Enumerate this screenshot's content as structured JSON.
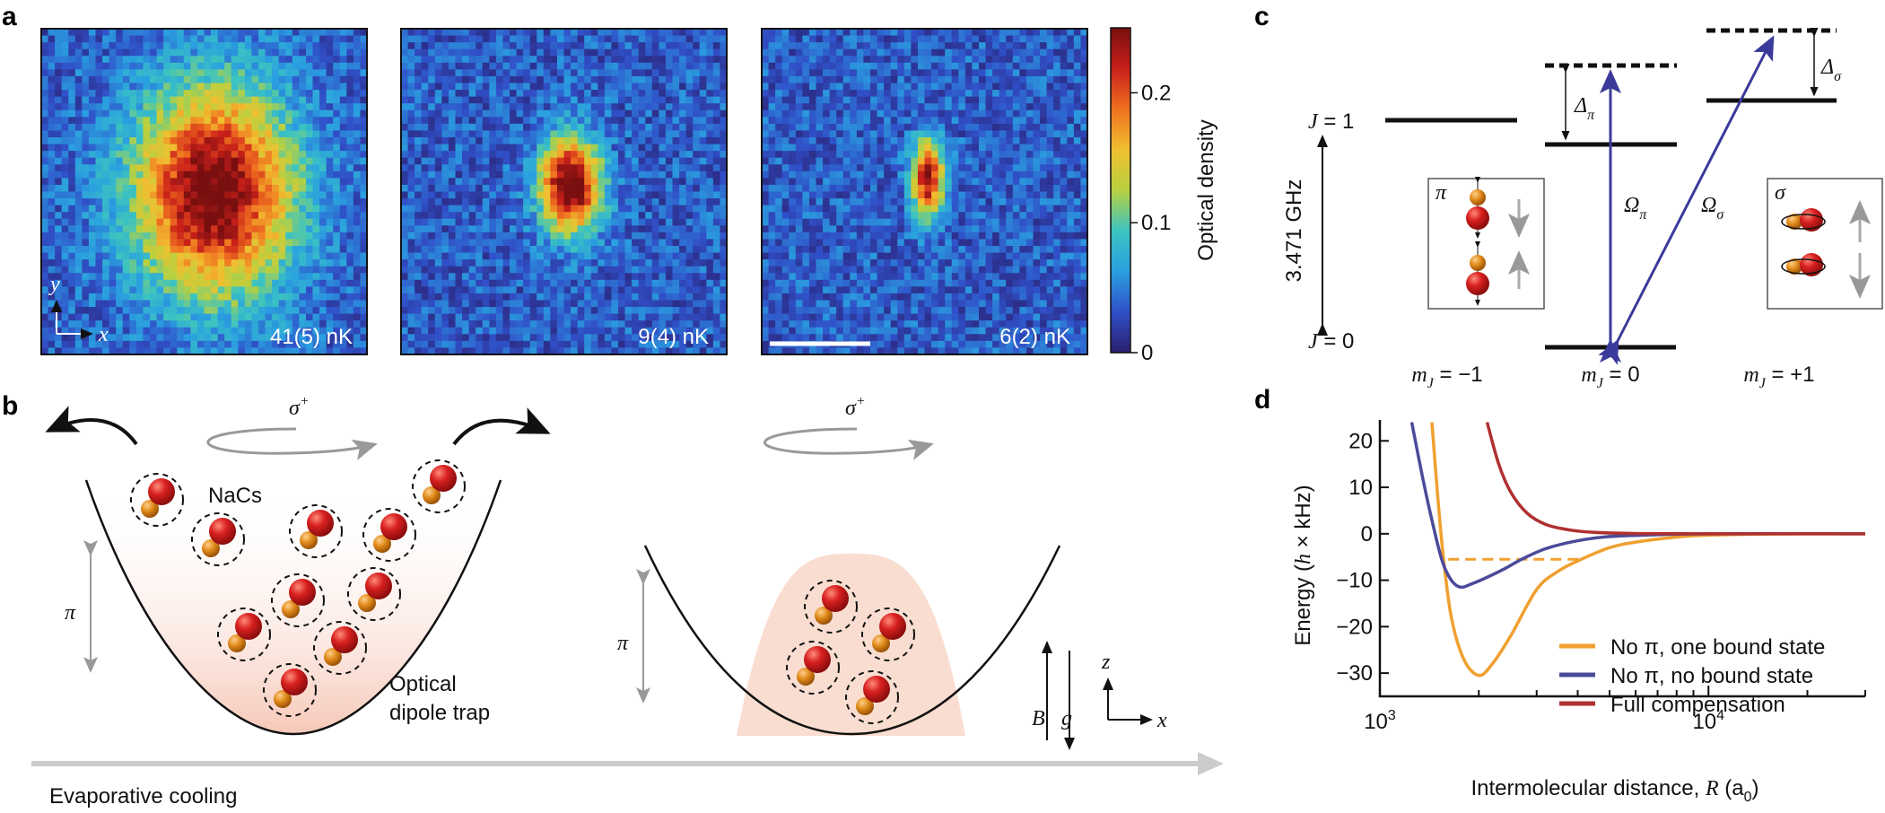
{
  "panels": {
    "a": {
      "label": "a",
      "images": [
        {
          "temperature": "41(5) nK"
        },
        {
          "temperature": "9(4) nK"
        },
        {
          "temperature": "6(2) nK"
        }
      ],
      "axes_labels": {
        "y": "y",
        "x": "x"
      },
      "colorbar": {
        "label": "Optical density",
        "ticks": [
          "0",
          "0.1",
          "0.2"
        ],
        "tick_values": [
          0,
          0.1,
          0.2
        ],
        "range": [
          0,
          0.25
        ],
        "colormap": [
          "#2a1f6e",
          "#3050c8",
          "#2a9fe0",
          "#3cc4c0",
          "#b8d040",
          "#f0c030",
          "#f07020",
          "#c8201a",
          "#7a0f10"
        ]
      }
    },
    "b": {
      "label": "b",
      "sigma_plus": "σ",
      "sigma_sup": "+",
      "pi": "π",
      "molecule": "NaCs",
      "trap_line1": "Optical",
      "trap_line2": "dipole trap",
      "B": "B",
      "g": "g",
      "z": "z",
      "x": "x",
      "arrow_label": "Evaporative cooling",
      "colors": {
        "cs": "#d21a1a",
        "na": "#e08a1a",
        "cloud": "#f9ddd0"
      }
    },
    "c": {
      "label": "c",
      "J1": "J = 1",
      "J0": "J = 0",
      "splitting": "3.471 GHz",
      "delta": "Δ",
      "omega": "Ω",
      "pi": "π",
      "sigma": "σ",
      "mJ": [
        {
          "m": "m",
          "sub": "J",
          "val": " = −1"
        },
        {
          "m": "m",
          "sub": "J",
          "val": " = 0"
        },
        {
          "m": "m",
          "sub": "J",
          "val": " = +1"
        }
      ],
      "arrow_color": "#3a3a9a"
    }
  },
  "chart_data": {
    "type": "line",
    "panel_label": "d",
    "xlabel": "Intermolecular distance, R (a0)",
    "xlabel_parts": [
      "Intermolecular distance, ",
      "R",
      " (a",
      "0",
      ")"
    ],
    "ylabel": "Energy (h × kHz)",
    "ylabel_parts": [
      "Energy (",
      "h",
      " × kHz)"
    ],
    "xscale": "log",
    "xlim": [
      1000,
      30000
    ],
    "ylim": [
      -35,
      24.5
    ],
    "xticks": [
      {
        "base": "10",
        "exp": "3",
        "value": 1000
      },
      {
        "base": "10",
        "exp": "4",
        "value": 10000
      }
    ],
    "yticks": [
      20,
      10,
      0,
      -10,
      -20,
      -30
    ],
    "ytick_labels": [
      "20",
      "10",
      "0",
      "−10",
      "−20",
      "−30"
    ],
    "legend_position": "bottom-right",
    "series": [
      {
        "name": "No π, one bound state",
        "color": "#f0a030",
        "points": [
          [
            1440,
            24
          ],
          [
            1500,
            8
          ],
          [
            1560,
            -5
          ],
          [
            1650,
            -18
          ],
          [
            1800,
            -27
          ],
          [
            2000,
            -30.5
          ],
          [
            2200,
            -28
          ],
          [
            2500,
            -22
          ],
          [
            3000,
            -12
          ],
          [
            3500,
            -8
          ],
          [
            4100,
            -5.5
          ],
          [
            5000,
            -3
          ],
          [
            6000,
            -1.8
          ],
          [
            8000,
            -0.7
          ],
          [
            10000,
            -0.3
          ],
          [
            15000,
            -0.05
          ],
          [
            30000,
            0
          ]
        ]
      },
      {
        "name": "No π, no bound state",
        "color": "#4a4a9a",
        "points": [
          [
            1250,
            24
          ],
          [
            1350,
            12
          ],
          [
            1450,
            2
          ],
          [
            1550,
            -6
          ],
          [
            1650,
            -10
          ],
          [
            1760,
            -11.5
          ],
          [
            1900,
            -10.8
          ],
          [
            2100,
            -9.5
          ],
          [
            2400,
            -7.5
          ],
          [
            2700,
            -5.5
          ],
          [
            3200,
            -3.2
          ],
          [
            4000,
            -1.5
          ],
          [
            5000,
            -0.6
          ],
          [
            7000,
            -0.2
          ],
          [
            10000,
            0
          ],
          [
            30000,
            0
          ]
        ]
      },
      {
        "name": "Full compensation",
        "color": "#b03030",
        "points": [
          [
            2120,
            24
          ],
          [
            2300,
            15
          ],
          [
            2500,
            9
          ],
          [
            2800,
            4.5
          ],
          [
            3200,
            2
          ],
          [
            3800,
            0.8
          ],
          [
            4500,
            0.3
          ],
          [
            6000,
            0.05
          ],
          [
            10000,
            0
          ],
          [
            30000,
            0
          ]
        ]
      }
    ],
    "bound_state_line": {
      "energy": -5.5,
      "x_range": [
        1615,
        4110
      ],
      "color": "#f0a030",
      "style": "dashed"
    }
  }
}
